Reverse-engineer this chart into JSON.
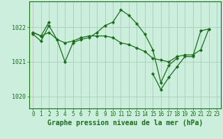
{
  "background_color": "#cceedd",
  "plot_bg_color": "#cceedd",
  "grid_color": "#aaccbb",
  "line_color": "#1a6e1a",
  "marker_color": "#1a6e1a",
  "title": "Graphe pression niveau de la mer (hPa)",
  "tick_fontsize": 5.5,
  "title_fontsize": 7.0,
  "xlim": [
    -0.5,
    23.5
  ],
  "ylim": [
    1019.65,
    1022.75
  ],
  "yticks": [
    1020,
    1021,
    1022
  ],
  "xticks": [
    0,
    1,
    2,
    3,
    4,
    5,
    6,
    7,
    8,
    9,
    10,
    11,
    12,
    13,
    14,
    15,
    16,
    17,
    18,
    19,
    20,
    21,
    22,
    23
  ],
  "series": [
    [
      1021.8,
      1021.6,
      1022.05,
      1021.65,
      1021.0,
      1021.55,
      1021.65,
      1021.7,
      1021.85,
      1022.05,
      1022.15,
      1022.5,
      1022.35,
      1022.1,
      1021.8,
      1021.35,
      1020.4,
      1020.9,
      1021.1,
      null,
      null,
      null,
      null,
      null
    ],
    [
      1021.85,
      1021.75,
      1022.15,
      null,
      null,
      null,
      null,
      null,
      null,
      null,
      null,
      null,
      null,
      null,
      null,
      null,
      null,
      null,
      null,
      null,
      null,
      null,
      null,
      null
    ],
    [
      null,
      null,
      null,
      null,
      null,
      null,
      null,
      null,
      null,
      null,
      null,
      null,
      null,
      null,
      null,
      1020.65,
      1020.2,
      1020.55,
      1020.85,
      1021.15,
      1021.15,
      1021.9,
      1021.95,
      null
    ],
    [
      1021.85,
      1021.75,
      1021.85,
      1021.65,
      1021.55,
      1021.6,
      1021.7,
      1021.75,
      1021.75,
      1021.75,
      1021.7,
      1021.55,
      1021.5,
      1021.4,
      1021.3,
      1021.1,
      1021.05,
      1021.0,
      1021.15,
      1021.2,
      1021.2,
      1021.35,
      1021.95,
      null
    ]
  ]
}
